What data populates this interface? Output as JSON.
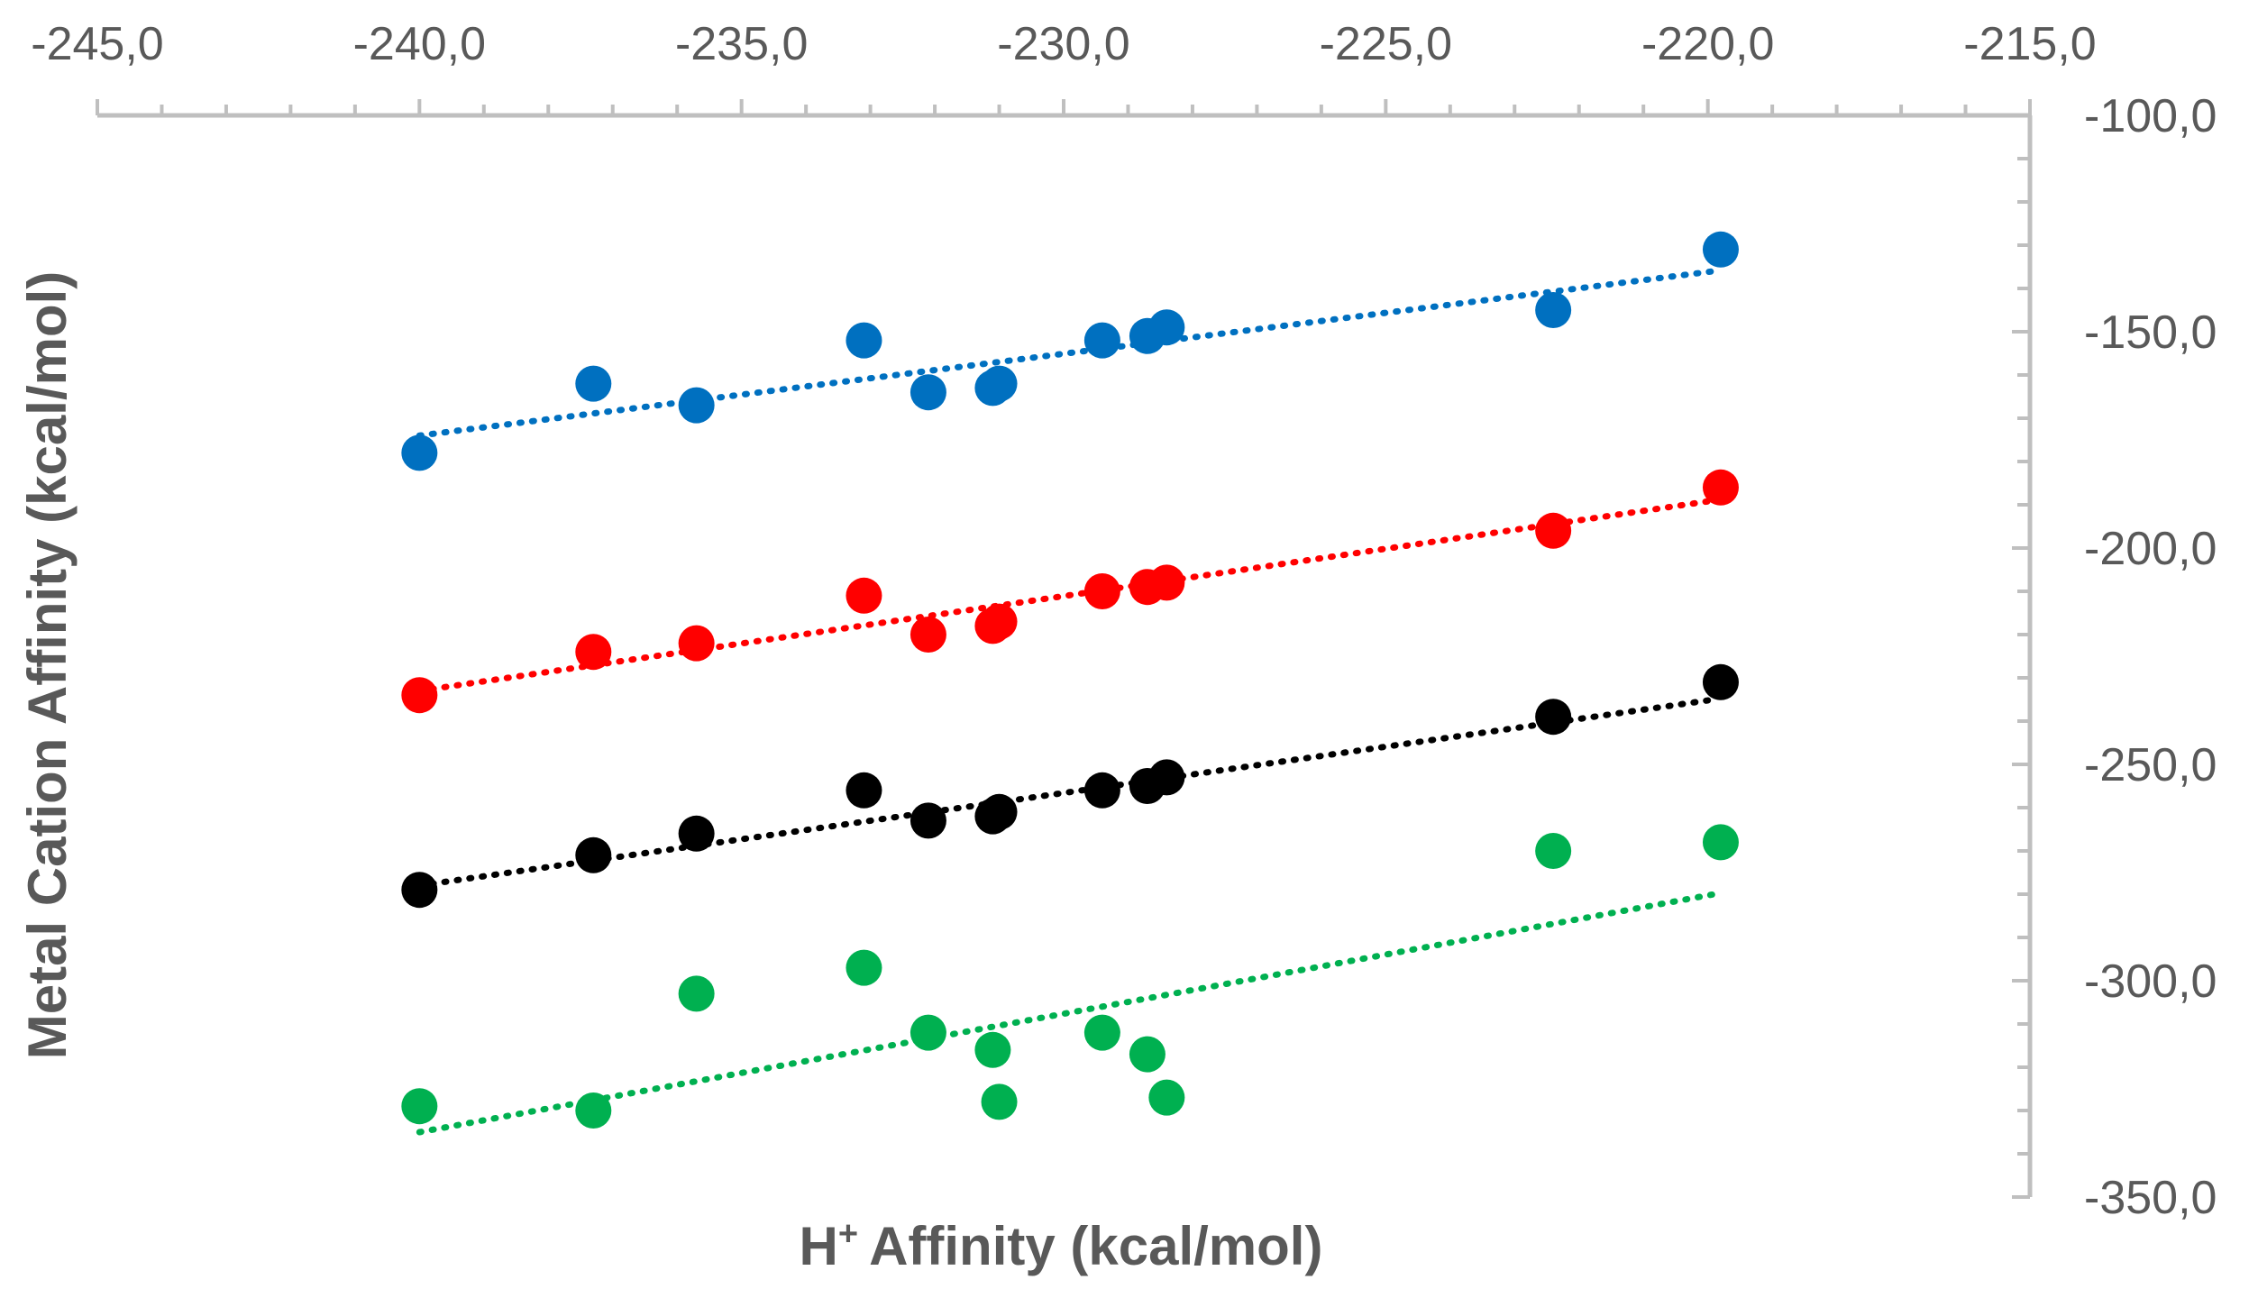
{
  "chart_data": {
    "type": "scatter",
    "title": "",
    "xlabel": "Affinity (kcal/mol)",
    "xlabel_prefix": "H",
    "xlabel_sup": "+",
    "ylabel": "Metal Cation Affinity (kcal/mol)",
    "xlim": [
      -245,
      -215
    ],
    "ylim": [
      -350,
      -100
    ],
    "x_ticks": [
      -245,
      -240,
      -235,
      -230,
      -225,
      -220,
      -215
    ],
    "x_tick_labels": [
      "-245,0",
      "-240,0",
      "-235,0",
      "-230,0",
      "-225,0",
      "-220,0",
      "-215,0"
    ],
    "y_ticks": [
      -100,
      -150,
      -200,
      -250,
      -300,
      -350
    ],
    "y_tick_labels": [
      "-100,0",
      "-150,0",
      "-200,0",
      "-250,0",
      "-300,0",
      "-350,0"
    ],
    "x_axis_position": "top",
    "y_axis_position": "right",
    "legend": "none",
    "grid": false,
    "x": [
      -240.0,
      -237.3,
      -235.7,
      -233.1,
      -232.1,
      -231.1,
      -231.0,
      -229.4,
      -228.7,
      -228.4,
      -222.4,
      -219.8
    ],
    "series": [
      {
        "name": "blue",
        "color": "#0070C0",
        "values": [
          -178,
          -162,
          -167,
          -152,
          -164,
          -163,
          -162,
          -152,
          -151,
          -149,
          -145,
          -131
        ],
        "trend": {
          "x": [
            -240.0,
            -219.9
          ],
          "y": [
            -174,
            -136
          ]
        }
      },
      {
        "name": "red",
        "color": "#FF0000",
        "values": [
          -234,
          -224,
          -222,
          -211,
          -220,
          -218,
          -217,
          -210,
          -209,
          -208,
          -196,
          -186
        ],
        "trend": {
          "x": [
            -240.0,
            -219.9
          ],
          "y": [
            -233,
            -189
          ]
        }
      },
      {
        "name": "black",
        "color": "#000000",
        "values": [
          -279,
          -271,
          -266,
          -256,
          -263,
          -262,
          -261,
          -256,
          -255,
          -253,
          -239,
          -231
        ],
        "trend": {
          "x": [
            -240.0,
            -219.9
          ],
          "y": [
            -278,
            -235
          ]
        }
      },
      {
        "name": "green",
        "color": "#00B050",
        "values": [
          -329,
          -330,
          -303,
          -297,
          -312,
          -316,
          -328,
          -312,
          -317,
          -327,
          -270,
          -268
        ],
        "trend": {
          "x": [
            -240.0,
            -219.9
          ],
          "y": [
            -335,
            -280
          ]
        }
      }
    ]
  }
}
